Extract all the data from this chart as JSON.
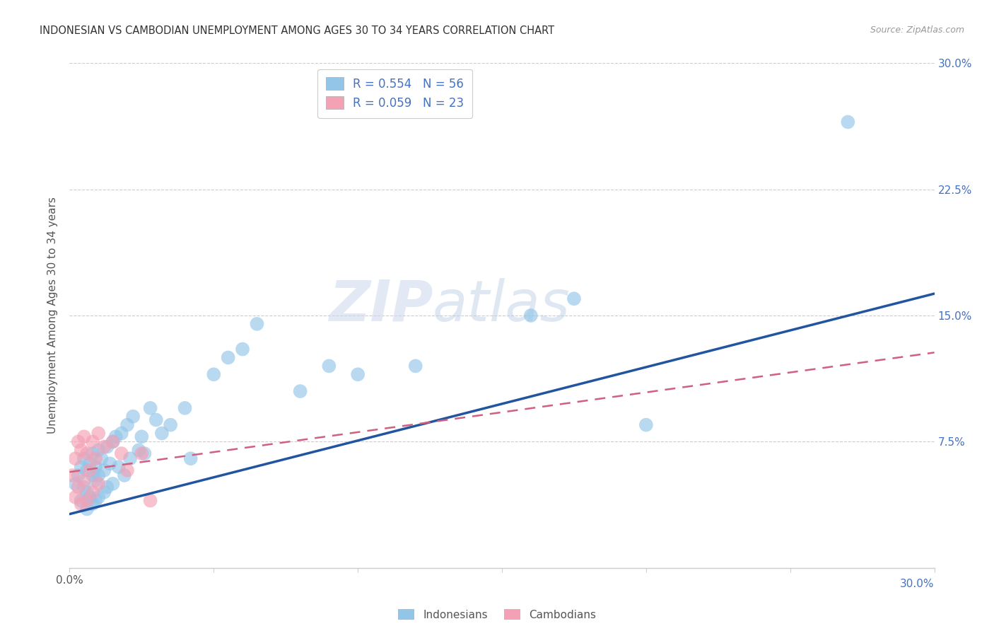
{
  "title": "INDONESIAN VS CAMBODIAN UNEMPLOYMENT AMONG AGES 30 TO 34 YEARS CORRELATION CHART",
  "source": "Source: ZipAtlas.com",
  "ylabel": "Unemployment Among Ages 30 to 34 years",
  "xlim": [
    0.0,
    0.3
  ],
  "ylim": [
    0.0,
    0.3
  ],
  "xticks": [
    0.0,
    0.05,
    0.1,
    0.15,
    0.2,
    0.25,
    0.3
  ],
  "yticks": [
    0.0,
    0.075,
    0.15,
    0.225,
    0.3
  ],
  "indonesian_color": "#92C5E8",
  "cambodian_color": "#F4A0B5",
  "indonesian_line_color": "#2255A0",
  "cambodian_line_color": "#D06080",
  "R_indonesian": 0.554,
  "N_indonesian": 56,
  "R_cambodian": 0.059,
  "N_cambodian": 23,
  "watermark_zip": "ZIP",
  "watermark_atlas": "atlas",
  "indonesian_scatter_x": [
    0.002,
    0.003,
    0.004,
    0.004,
    0.005,
    0.005,
    0.006,
    0.006,
    0.006,
    0.007,
    0.007,
    0.008,
    0.008,
    0.008,
    0.009,
    0.009,
    0.009,
    0.01,
    0.01,
    0.01,
    0.011,
    0.012,
    0.012,
    0.013,
    0.013,
    0.014,
    0.015,
    0.015,
    0.016,
    0.017,
    0.018,
    0.019,
    0.02,
    0.021,
    0.022,
    0.024,
    0.025,
    0.026,
    0.028,
    0.03,
    0.032,
    0.035,
    0.04,
    0.042,
    0.05,
    0.055,
    0.06,
    0.065,
    0.08,
    0.09,
    0.1,
    0.12,
    0.16,
    0.175,
    0.2,
    0.27
  ],
  "indonesian_scatter_y": [
    0.05,
    0.055,
    0.06,
    0.04,
    0.065,
    0.048,
    0.058,
    0.045,
    0.035,
    0.062,
    0.042,
    0.068,
    0.055,
    0.038,
    0.06,
    0.052,
    0.04,
    0.07,
    0.055,
    0.042,
    0.065,
    0.058,
    0.045,
    0.072,
    0.048,
    0.062,
    0.075,
    0.05,
    0.078,
    0.06,
    0.08,
    0.055,
    0.085,
    0.065,
    0.09,
    0.07,
    0.078,
    0.068,
    0.095,
    0.088,
    0.08,
    0.085,
    0.095,
    0.065,
    0.115,
    0.125,
    0.13,
    0.145,
    0.105,
    0.12,
    0.115,
    0.12,
    0.15,
    0.16,
    0.085,
    0.265
  ],
  "cambodian_scatter_x": [
    0.001,
    0.002,
    0.002,
    0.003,
    0.003,
    0.004,
    0.004,
    0.005,
    0.005,
    0.006,
    0.006,
    0.007,
    0.008,
    0.008,
    0.009,
    0.01,
    0.01,
    0.012,
    0.015,
    0.018,
    0.02,
    0.025,
    0.028
  ],
  "cambodian_scatter_y": [
    0.055,
    0.065,
    0.042,
    0.075,
    0.048,
    0.07,
    0.038,
    0.078,
    0.052,
    0.068,
    0.04,
    0.058,
    0.075,
    0.045,
    0.065,
    0.08,
    0.05,
    0.072,
    0.075,
    0.068,
    0.058,
    0.068,
    0.04
  ],
  "indonesian_trend_x": [
    0.0,
    0.3
  ],
  "indonesian_trend_y": [
    0.032,
    0.163
  ],
  "cambodian_trend_x": [
    0.0,
    0.3
  ],
  "cambodian_trend_y": [
    0.057,
    0.128
  ],
  "background_color": "#ffffff",
  "grid_color": "#cccccc",
  "right_tick_color": "#4472C4",
  "bottom_label_color": "#555555"
}
